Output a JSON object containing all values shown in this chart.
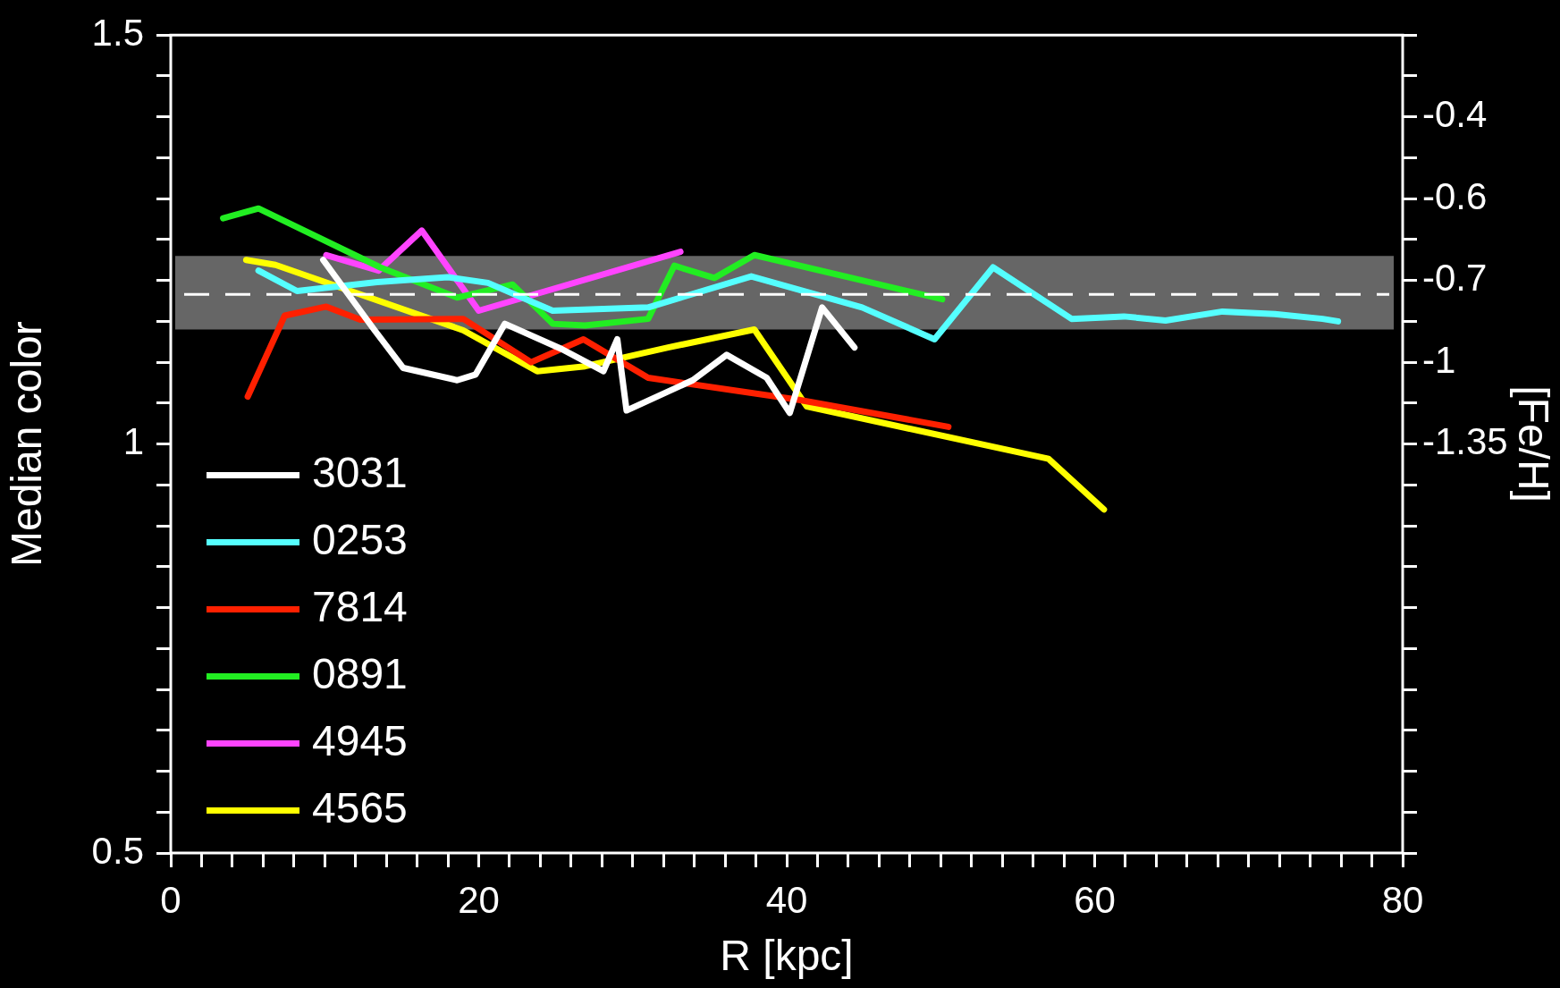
{
  "chart_data": {
    "type": "line",
    "xlabel": "R [kpc]",
    "ylabel": "Median color",
    "y2label": "[Fe/H]",
    "xlim": [
      0,
      80
    ],
    "xticks": [
      {
        "value": 0,
        "label": "0"
      },
      {
        "value": 2,
        "label": null
      },
      {
        "value": 4,
        "label": null
      },
      {
        "value": 6,
        "label": null
      },
      {
        "value": 8,
        "label": null
      },
      {
        "value": 10,
        "label": null
      },
      {
        "value": 12,
        "label": null
      },
      {
        "value": 14,
        "label": null
      },
      {
        "value": 16,
        "label": null
      },
      {
        "value": 18,
        "label": null
      },
      {
        "value": 20,
        "label": "20"
      },
      {
        "value": 22,
        "label": null
      },
      {
        "value": 24,
        "label": null
      },
      {
        "value": 26,
        "label": null
      },
      {
        "value": 28,
        "label": null
      },
      {
        "value": 30,
        "label": null
      },
      {
        "value": 32,
        "label": null
      },
      {
        "value": 34,
        "label": null
      },
      {
        "value": 36,
        "label": null
      },
      {
        "value": 38,
        "label": null
      },
      {
        "value": 40,
        "label": "40"
      },
      {
        "value": 42,
        "label": null
      },
      {
        "value": 44,
        "label": null
      },
      {
        "value": 46,
        "label": null
      },
      {
        "value": 48,
        "label": null
      },
      {
        "value": 50,
        "label": null
      },
      {
        "value": 52,
        "label": null
      },
      {
        "value": 54,
        "label": null
      },
      {
        "value": 56,
        "label": null
      },
      {
        "value": 58,
        "label": null
      },
      {
        "value": 60,
        "label": "60"
      },
      {
        "value": 62,
        "label": null
      },
      {
        "value": 64,
        "label": null
      },
      {
        "value": 66,
        "label": null
      },
      {
        "value": 68,
        "label": null
      },
      {
        "value": 70,
        "label": null
      },
      {
        "value": 72,
        "label": null
      },
      {
        "value": 74,
        "label": null
      },
      {
        "value": 76,
        "label": null
      },
      {
        "value": 78,
        "label": null
      },
      {
        "value": 80,
        "label": "80"
      }
    ],
    "ylim": [
      0.5,
      1.5
    ],
    "yticks": [
      {
        "value": 0.5,
        "label": "0.5"
      },
      {
        "value": 0.55,
        "label": null
      },
      {
        "value": 0.6,
        "label": null
      },
      {
        "value": 0.65,
        "label": null
      },
      {
        "value": 0.7,
        "label": null
      },
      {
        "value": 0.75,
        "label": null
      },
      {
        "value": 0.8,
        "label": null
      },
      {
        "value": 0.85,
        "label": null
      },
      {
        "value": 0.9,
        "label": null
      },
      {
        "value": 0.95,
        "label": null
      },
      {
        "value": 1,
        "label": "1"
      },
      {
        "value": 1.05,
        "label": null
      },
      {
        "value": 1.1,
        "label": null
      },
      {
        "value": 1.15,
        "label": null
      },
      {
        "value": 1.2,
        "label": null
      },
      {
        "value": 1.25,
        "label": null
      },
      {
        "value": 1.3,
        "label": null
      },
      {
        "value": 1.35,
        "label": null
      },
      {
        "value": 1.4,
        "label": null
      },
      {
        "value": 1.45,
        "label": null
      },
      {
        "value": 1.5,
        "label": "1.5"
      }
    ],
    "y2_categories": [
      null,
      null,
      "-0.4",
      null,
      "-0.6",
      null,
      "-0.7",
      null,
      "-1",
      null,
      "-1.35",
      null,
      null,
      null,
      null,
      null,
      null,
      null,
      null,
      null,
      null
    ],
    "grid": false,
    "legend": "bottom left",
    "line_style": "solid",
    "marker": "none",
    "bands": [
      {
        "axis": "y",
        "from": 1.14,
        "to": 1.23,
        "color": "#666666"
      }
    ],
    "ref_lines": [
      {
        "axis": "y",
        "value": 1.183,
        "color": "#ffffff",
        "line_style": "dashed"
      }
    ],
    "series": [
      {
        "name": "3031",
        "color": "#ffffff",
        "x": [
          9.9,
          13.2,
          15.1,
          18.6,
          19.8,
          21.7,
          25.4,
          28.1,
          29.0,
          29.6,
          33.9,
          36.1,
          38.7,
          40.2,
          42.3,
          44.4
        ],
        "values": [
          1.225,
          1.14,
          1.093,
          1.078,
          1.085,
          1.147,
          1.116,
          1.089,
          1.128,
          1.041,
          1.078,
          1.109,
          1.081,
          1.038,
          1.167,
          1.118
        ]
      },
      {
        "name": "0253",
        "color": "#55ffff",
        "x": [
          5.7,
          8.2,
          13.4,
          18.0,
          20.6,
          24.8,
          31.0,
          37.7,
          44.9,
          49.6,
          53.4,
          58.5,
          61.9,
          64.6,
          68.3,
          71.7,
          74.8,
          75.8
        ],
        "values": [
          1.212,
          1.187,
          1.198,
          1.204,
          1.197,
          1.163,
          1.167,
          1.205,
          1.167,
          1.128,
          1.216,
          1.153,
          1.156,
          1.151,
          1.162,
          1.159,
          1.153,
          1.15
        ]
      },
      {
        "name": "7814",
        "color": "#ff2000",
        "x": [
          5.0,
          7.4,
          10.1,
          12.3,
          19.0,
          23.4,
          26.8,
          31.0,
          40.8,
          50.5
        ],
        "values": [
          1.058,
          1.157,
          1.168,
          1.152,
          1.153,
          1.1,
          1.128,
          1.081,
          1.054,
          1.021
        ]
      },
      {
        "name": "0891",
        "color": "#22ee22",
        "x": [
          3.4,
          5.7,
          13.6,
          18.6,
          22.2,
          24.8,
          26.9,
          31.0,
          32.7,
          35.3,
          37.9,
          50.1
        ],
        "values": [
          1.276,
          1.288,
          1.216,
          1.179,
          1.195,
          1.147,
          1.145,
          1.153,
          1.218,
          1.203,
          1.231,
          1.177
        ]
      },
      {
        "name": "4945",
        "color": "#ff44ff",
        "x": [
          10.1,
          13.5,
          16.3,
          20.0,
          33.1
        ],
        "values": [
          1.231,
          1.212,
          1.261,
          1.163,
          1.235
        ]
      },
      {
        "name": "4565",
        "color": "#ffff00",
        "x": [
          4.9,
          6.8,
          19.0,
          23.8,
          26.9,
          32.3,
          37.9,
          41.3,
          57.0,
          60.6
        ],
        "values": [
          1.225,
          1.219,
          1.139,
          1.089,
          1.095,
          1.118,
          1.14,
          1.046,
          0.982,
          0.92
        ]
      }
    ]
  }
}
